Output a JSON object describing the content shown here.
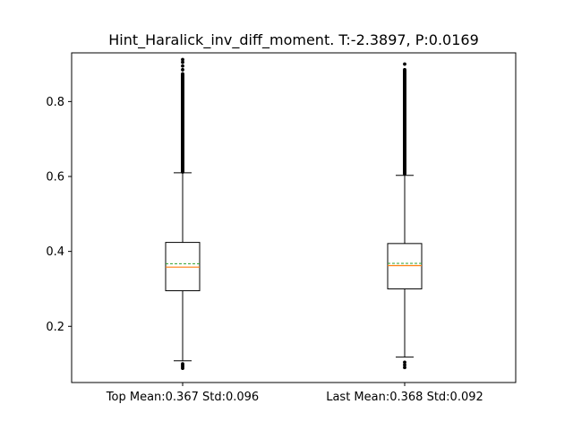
{
  "chart_data": {
    "type": "box",
    "title": "Hint_Haralick_inv_diff_moment. T:-2.3897, P:0.0169",
    "xlabel": "",
    "ylabel": "",
    "ylim": [
      0.05,
      0.93
    ],
    "yticks": [
      0.2,
      0.4,
      0.6,
      0.8
    ],
    "ytick_labels": [
      "0.2",
      "0.4",
      "0.6",
      "0.8"
    ],
    "grid": false,
    "median_color": "#ff7f0e",
    "mean_color": "#2ca02c",
    "box_color": "#000000",
    "categories": [
      "Top Mean:0.367 Std:0.096",
      "Last Mean:0.368 Std:0.092"
    ],
    "boxes": [
      {
        "label": "Top Mean:0.367 Std:0.096",
        "whisker_low": 0.108,
        "q1": 0.295,
        "median": 0.358,
        "mean": 0.367,
        "q3": 0.424,
        "whisker_high": 0.61,
        "outliers_low": [
          0.088,
          0.092,
          0.096,
          0.1
        ],
        "outliers_high_range": [
          0.612,
          0.875
        ],
        "outliers_high_sparse": [
          0.885,
          0.895,
          0.905,
          0.912
        ]
      },
      {
        "label": "Last Mean:0.368 Std:0.092",
        "whisker_low": 0.118,
        "q1": 0.3,
        "median": 0.362,
        "mean": 0.368,
        "q3": 0.421,
        "whisker_high": 0.603,
        "outliers_low": [
          0.09,
          0.097,
          0.104
        ],
        "outliers_high_range": [
          0.607,
          0.887
        ],
        "outliers_high_sparse": [
          0.9
        ]
      }
    ]
  }
}
